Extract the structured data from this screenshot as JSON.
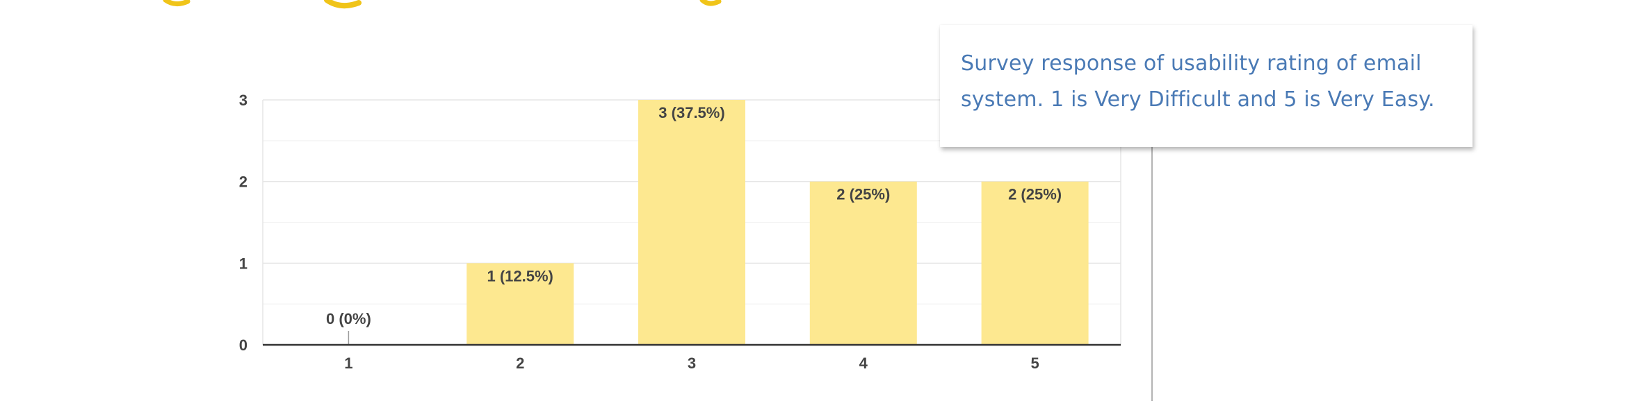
{
  "colors": {
    "bar_fill": "#fde890",
    "header_accent": "#f0c419",
    "callout_text": "#4a7ab5",
    "axis": "#333333",
    "grid_major": "#e6e6e6",
    "grid_minor": "#f3f3f3",
    "label": "#444444"
  },
  "callout": {
    "text": "Survey response of usability rating of email system. 1 is Very Difficult and 5 is Very Easy."
  },
  "chart_data": {
    "type": "bar",
    "title": "",
    "xlabel": "",
    "ylabel": "",
    "categories": [
      "1",
      "2",
      "3",
      "4",
      "5"
    ],
    "values": [
      0,
      1,
      3,
      2,
      2
    ],
    "data_labels": [
      "0 (0%)",
      "1 (12.5%)",
      "3 (37.5%)",
      "2 (25%)",
      "2 (25%)"
    ],
    "y_ticks": [
      "0",
      "1",
      "2",
      "3"
    ],
    "ylim": [
      0,
      3
    ],
    "grid": true,
    "legend": "none"
  }
}
